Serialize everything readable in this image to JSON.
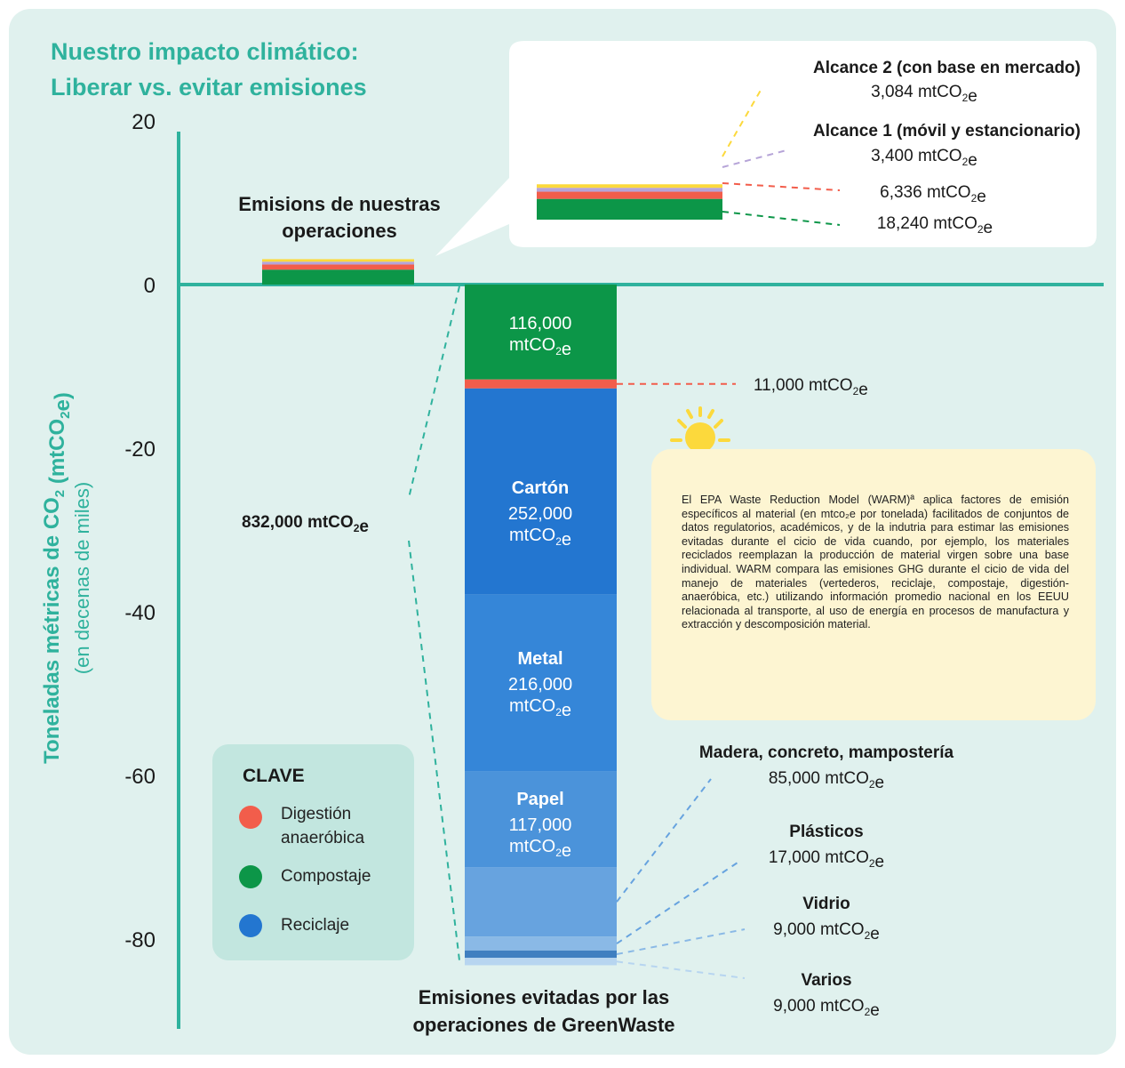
{
  "colors": {
    "teal": "#2fb29d",
    "background": "#e0f1ee",
    "green": "#0c9648",
    "red": "#f25d4b",
    "purple": "#b6a4d8",
    "yellow": "#fcd93c",
    "carton_blue": "#2376d0",
    "metal_blue": "#3586d8",
    "papel_blue": "#4b93da",
    "madera_blue": "#67a3df",
    "plasticos_blue": "#8ab9e6",
    "vidrio_blue": "#3f7fc0",
    "varios_blue": "#b7d5f0"
  },
  "chart_data": {
    "type": "bar",
    "title": [
      "Nuestro impacto climático:",
      "Liberar vs. evitar emisiones"
    ],
    "ylabel": "Toneladas métricas de CO₂ (mtCO₂e)",
    "ylabel_sub": "(en decenas de miles)",
    "y_ticks": [
      "20",
      "0",
      "-20",
      "-40",
      "-60",
      "-80"
    ],
    "ylim": [
      -90,
      20
    ],
    "categories": [
      "Emisions de nuestras operaciones",
      "Emisiones evitadas por las operaciones de GreenWaste"
    ],
    "series": [
      {
        "name": "Compostaje (operaciones)",
        "category": 0,
        "value": 18240,
        "label": "18,240 mtCO₂e"
      },
      {
        "name": "Digestión anaeróbica (operaciones)",
        "category": 0,
        "value": 6336,
        "label": "6,336 mtCO₂e"
      },
      {
        "name": "Alcance 1 (móvil y estancionario)",
        "category": 0,
        "value": 3400,
        "label": "3,400 mtCO₂e"
      },
      {
        "name": "Alcance 2 (con base en mercado)",
        "category": 0,
        "value": 3084,
        "label": "3,084 mtCO₂e"
      },
      {
        "name": "",
        "category": 1,
        "value": -116000,
        "label": "116,000 mtCO₂e"
      },
      {
        "name": "",
        "category": 1,
        "value": -11000,
        "label": "11,000 mtCO₂e"
      },
      {
        "name": "Cartón",
        "category": 1,
        "value": -252000,
        "label": "252,000 mtCO₂e"
      },
      {
        "name": "Metal",
        "category": 1,
        "value": -216000,
        "label": "216,000 mtCO₂e"
      },
      {
        "name": "Papel",
        "category": 1,
        "value": -117000,
        "label": "117,000 mtCO₂e"
      },
      {
        "name": "Madera, concreto, mampostería",
        "category": 1,
        "value": -85000,
        "label": "85,000 mtCO₂e"
      },
      {
        "name": "Plásticos",
        "category": 1,
        "value": -17000,
        "label": "17,000 mtCO₂e"
      },
      {
        "name": "Vidrio",
        "category": 1,
        "value": -9000,
        "label": "9,000 mtCO₂e"
      },
      {
        "name": "Varios",
        "category": 1,
        "value": -9000,
        "label": "9,000 mtCO₂e"
      }
    ],
    "annotations": {
      "ops_label": [
        "Emisions de nuestras",
        "operaciones"
      ],
      "avoided_label": [
        "Emisiones evitadas por las",
        "operaciones de GreenWaste"
      ],
      "total_avoided": "832,000 mtCO₂e",
      "alcance2_title": "Alcance 2 (con base en mercado)",
      "alcance2_value": "3,084 mtCO₂e",
      "alcance1_title": "Alcance 1 (móvil y estancionario)",
      "alcance1_value": "3,400 mtCO₂e",
      "ad_ops_value": "6,336 mtCO₂e",
      "compost_ops_value": "18,240 mtCO₂e",
      "ad_avoided_value": "11,000 mtCO₂e",
      "compost_avoided_value": [
        "116,000",
        "mtCO₂e"
      ],
      "carton": [
        "Cartón",
        "252,000",
        "mtCO₂e"
      ],
      "metal": [
        "Metal",
        "216,000",
        "mtCO₂e"
      ],
      "papel": [
        "Papel",
        "117,000",
        "mtCO₂e"
      ],
      "madera": [
        "Madera, concreto, mampostería",
        "85,000 mtCO₂e"
      ],
      "plasticos": [
        "Plásticos",
        "17,000 mtCO₂e"
      ],
      "vidrio": [
        "Vidrio",
        "9,000 mtCO₂e"
      ],
      "varios": [
        "Varios",
        "9,000 mtCO₂e"
      ]
    }
  },
  "key": {
    "title": "CLAVE",
    "items": [
      {
        "label": "Digestión anaeróbica",
        "color": "#f25d4b"
      },
      {
        "label": "Compostaje",
        "color": "#0c9648"
      },
      {
        "label": "Reciclaje",
        "color": "#2376d0"
      }
    ]
  },
  "info": {
    "icon": "lightbulb-icon",
    "text": "El EPA Waste Reduction Model (WARM)ª aplica factores de emisión específicos al material (en mtco₂e por tonelada) facilitados de conjuntos de datos regulatorios, académicos, y de la indutria para estimar las emisiones evitadas durante el cicio de vida cuando, por ejemplo, los materiales reciclados reemplazan la producción de material virgen sobre una base individual. WARM compara las emisiones GHG durante el cicio de vida del manejo de materiales (vertederos, reciclaje, compostaje, digestión- anaeróbica, etc.) utilizando información promedio nacional en los EEUU relacionada al transporte, al uso de energía en procesos de manufactura y extracción y descomposición material."
  }
}
